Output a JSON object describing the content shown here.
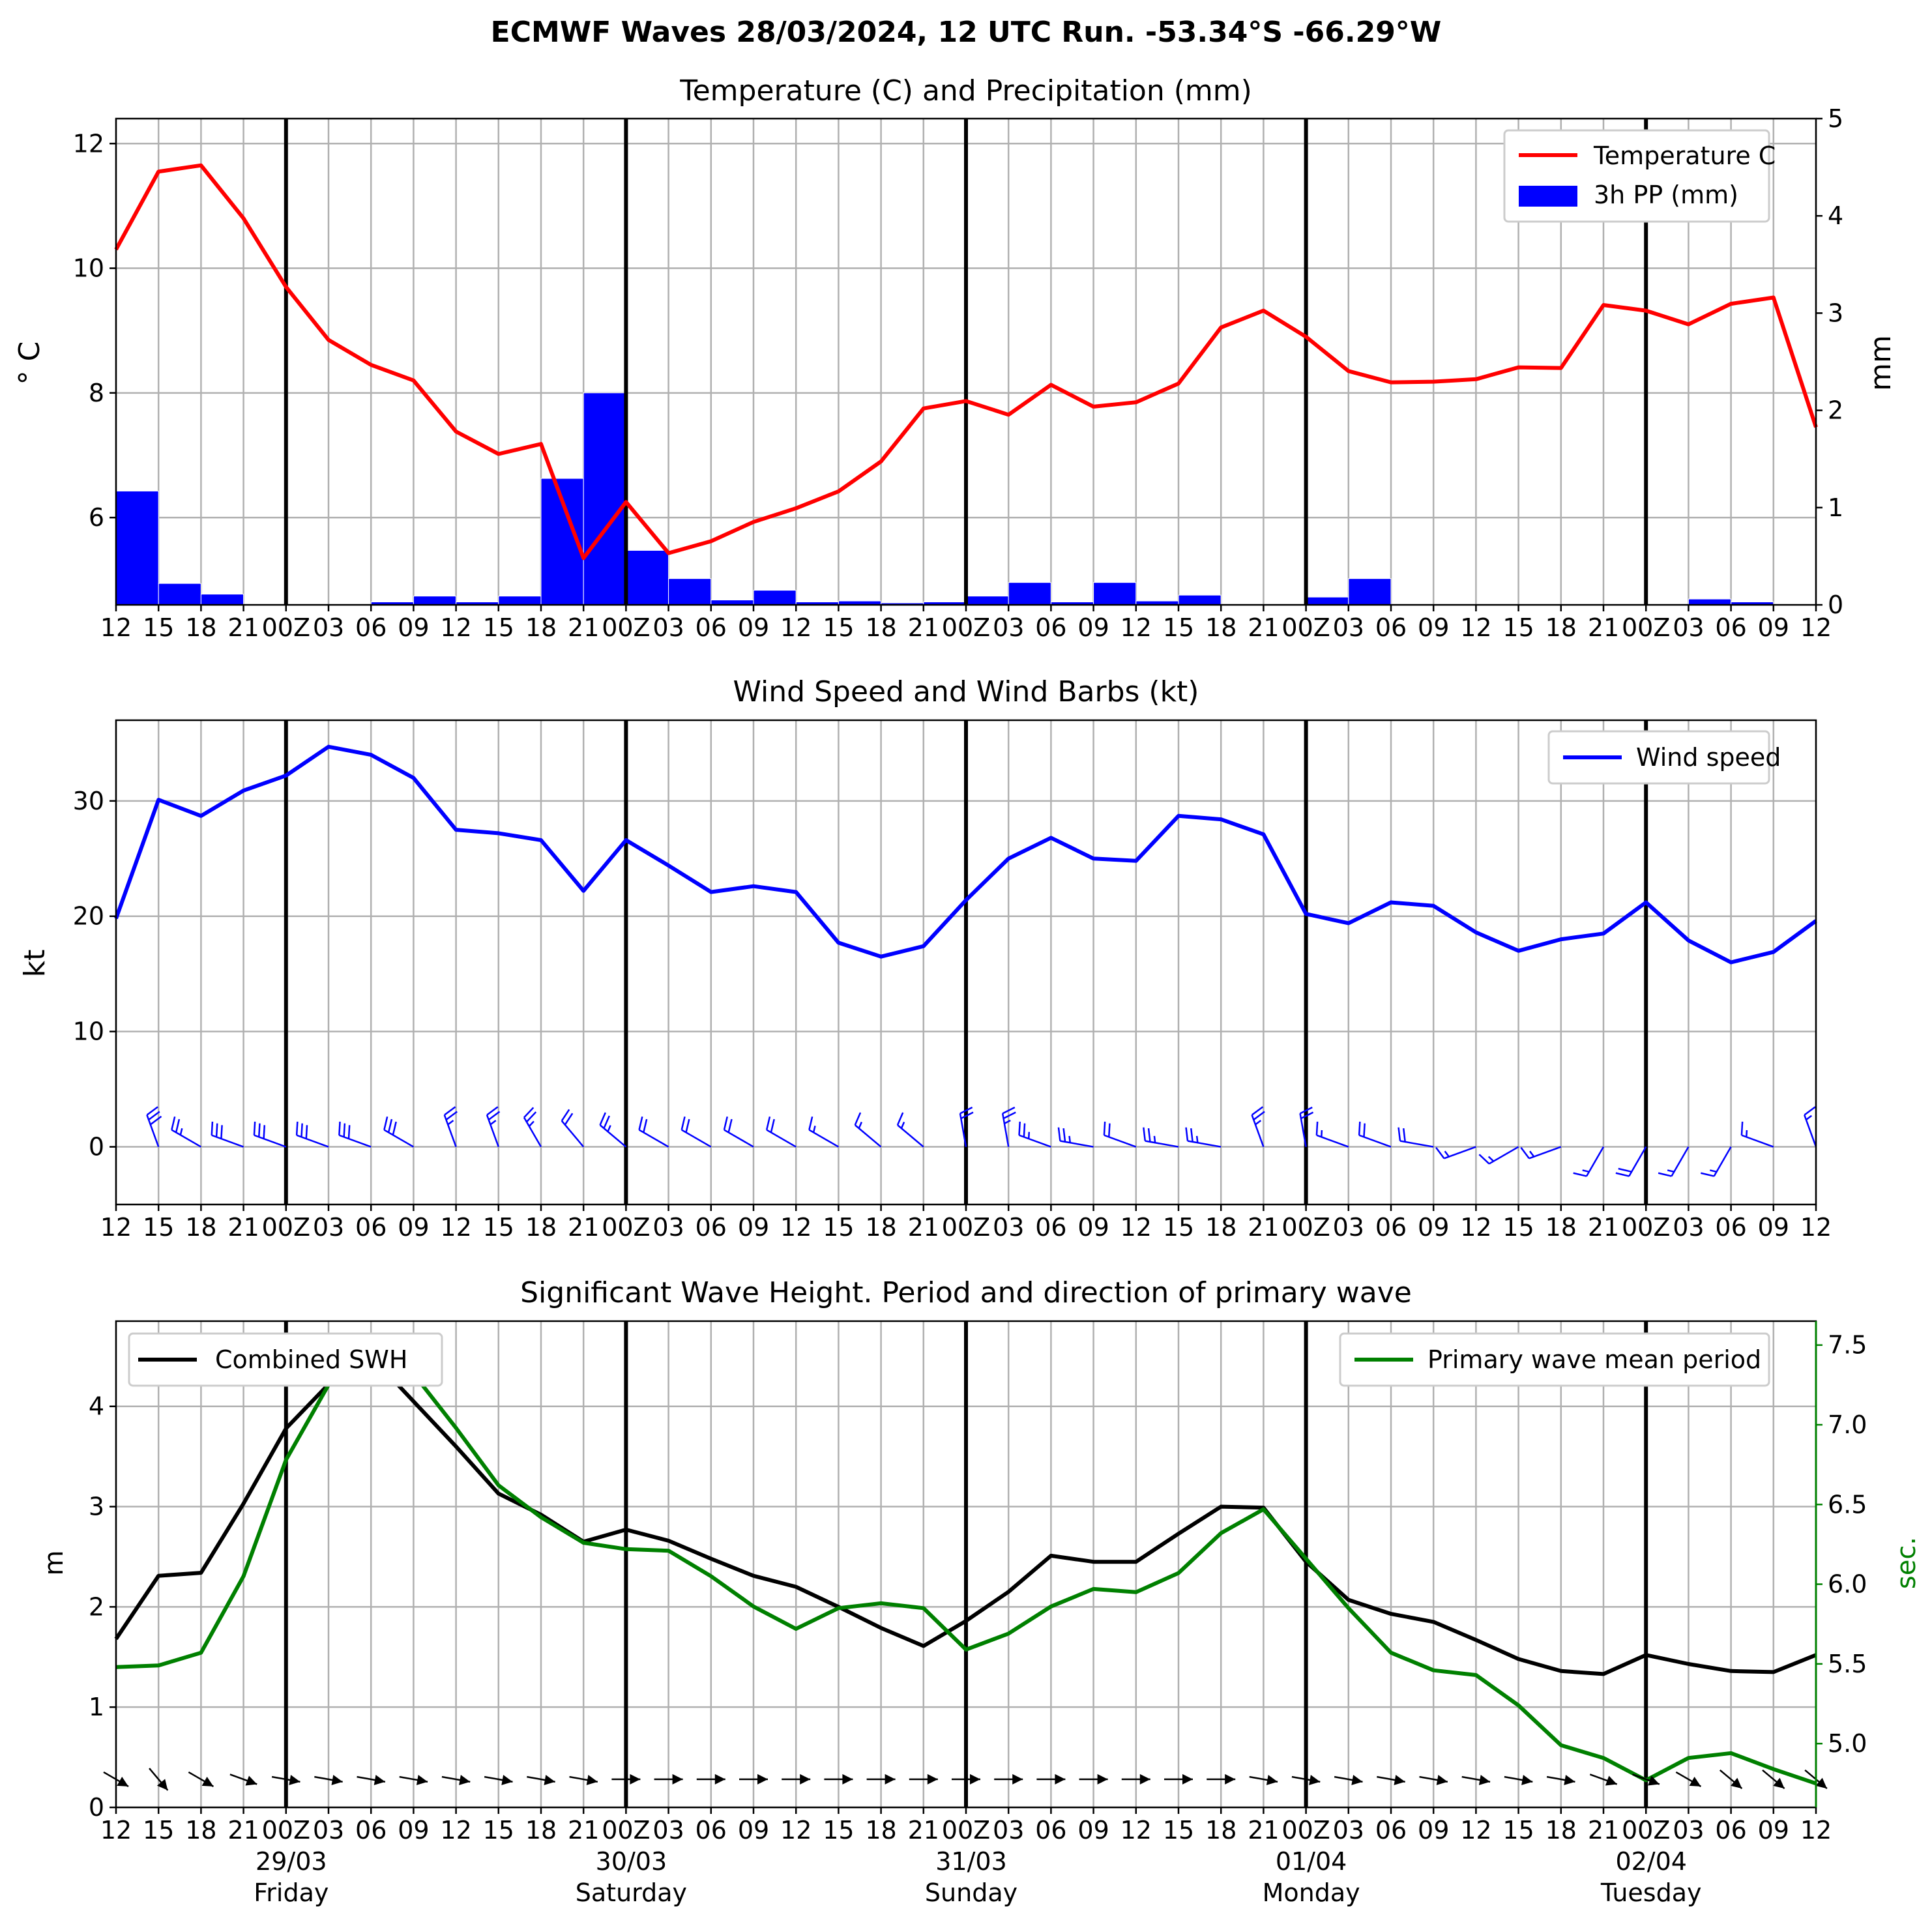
{
  "figure": {
    "suptitle": "ECMWF Waves 28/03/2024, 12 UTC Run. -53.34°S -66.29°W"
  },
  "time_axis": {
    "tick_labels": [
      "12",
      "15",
      "18",
      "21",
      "00Z",
      "03",
      "06",
      "09",
      "12",
      "15",
      "18",
      "21",
      "00Z",
      "03",
      "06",
      "09",
      "12",
      "15",
      "18",
      "21",
      "00Z",
      "03",
      "06",
      "09",
      "12",
      "15",
      "18",
      "21",
      "00Z",
      "03",
      "06",
      "09",
      "12",
      "15",
      "18",
      "21",
      "00Z",
      "03",
      "06",
      "09",
      "12"
    ],
    "day_labels": [
      {
        "date": "29/03",
        "day": "Friday",
        "tick_index": 4
      },
      {
        "date": "30/03",
        "day": "Saturday",
        "tick_index": 12
      },
      {
        "date": "31/03",
        "day": "Sunday",
        "tick_index": 20
      },
      {
        "date": "01/04",
        "day": "Monday",
        "tick_index": 28
      },
      {
        "date": "02/04",
        "day": "Tuesday",
        "tick_index": 36
      }
    ],
    "midnight_indices": [
      4,
      12,
      20,
      28,
      36
    ]
  },
  "chart_data": [
    {
      "type": "line",
      "title": "Temperature (C) and Precipitation (mm)",
      "ylabel": "° C",
      "ylabel_right": "mm",
      "ylim": [
        4.6,
        12.4
      ],
      "ylim_right": [
        0,
        5
      ],
      "yticks": [
        6,
        8,
        10,
        12
      ],
      "yticks_right": [
        0,
        1,
        2,
        3,
        4,
        5
      ],
      "grid": true,
      "legend_position": "top-right",
      "colors": {
        "temperature": "#ff0000",
        "precip": "#0000ff"
      },
      "series": [
        {
          "name": "Temperature C",
          "axis": "left",
          "type": "line",
          "values": [
            10.3,
            11.55,
            11.65,
            10.8,
            9.7,
            8.85,
            8.45,
            8.2,
            7.38,
            7.02,
            7.18,
            5.35,
            6.25,
            5.43,
            5.62,
            5.93,
            6.15,
            6.42,
            6.9,
            7.75,
            7.87,
            7.65,
            8.13,
            7.78,
            7.85,
            8.15,
            9.05,
            9.32,
            8.9,
            8.35,
            8.17,
            8.18,
            8.22,
            8.41,
            8.4,
            9.41,
            9.32,
            9.1,
            9.43,
            9.53,
            7.45
          ]
        },
        {
          "name": "3h PP (mm)",
          "axis": "right",
          "type": "bar",
          "values": [
            1.17,
            0.22,
            0.11,
            0,
            0,
            0,
            0.03,
            0.09,
            0.03,
            0.09,
            1.3,
            2.18,
            0.56,
            0.27,
            0.05,
            0.15,
            0.03,
            0.04,
            0.02,
            0.03,
            0.09,
            0.23,
            0.03,
            0.23,
            0.04,
            0.1,
            0,
            0,
            0.08,
            0.27,
            0,
            0,
            0,
            0,
            0,
            0,
            0,
            0.06,
            0.03,
            0,
            0
          ]
        }
      ]
    },
    {
      "type": "line",
      "title": "Wind Speed and Wind Barbs (kt)",
      "ylabel": "kt",
      "ylim": [
        -5,
        37
      ],
      "yticks": [
        0,
        10,
        20,
        30
      ],
      "grid": true,
      "legend_position": "top-right",
      "colors": {
        "wind": "#0000ff"
      },
      "series": [
        {
          "name": "Wind speed",
          "values": [
            19.8,
            30.1,
            28.7,
            30.9,
            32.2,
            34.7,
            34.0,
            32.0,
            27.5,
            27.2,
            26.6,
            22.2,
            26.6,
            24.4,
            22.1,
            22.6,
            22.1,
            17.7,
            16.5,
            17.4,
            21.4,
            25.0,
            26.8,
            25.0,
            24.8,
            28.7,
            28.4,
            27.1,
            20.2,
            19.4,
            21.2,
            20.9,
            18.6,
            17.0,
            18.0,
            18.5,
            21.2,
            17.9,
            16.0,
            16.9,
            19.6
          ]
        }
      ],
      "barb_directions_deg": [
        200,
        340,
        300,
        290,
        290,
        290,
        290,
        300,
        340,
        340,
        330,
        320,
        310,
        300,
        300,
        300,
        300,
        300,
        310,
        310,
        350,
        350,
        290,
        280,
        290,
        280,
        280,
        340,
        350,
        290,
        290,
        280,
        250,
        240,
        250,
        210,
        210,
        210,
        210,
        290,
        340
      ]
    },
    {
      "type": "line",
      "title": "Significant Wave Height. Period and direction of primary wave",
      "ylabel": "m",
      "ylabel_right": "sec.",
      "ylim": [
        0,
        4.85
      ],
      "ylim_right": [
        4.6,
        7.65
      ],
      "yticks": [
        0,
        1,
        2,
        3,
        4
      ],
      "yticks_right": [
        5.0,
        5.5,
        6.0,
        6.5,
        7.0,
        7.5
      ],
      "grid": true,
      "legend_positions": {
        "Combined SWH": "top-left",
        "Primary wave mean period": "top-right"
      },
      "colors": {
        "swh": "#000000",
        "period": "#008000"
      },
      "series": [
        {
          "name": "Combined SWH",
          "axis": "left",
          "values": [
            1.68,
            2.31,
            2.34,
            3.03,
            3.78,
            4.22,
            4.5,
            4.05,
            3.6,
            3.13,
            2.92,
            2.65,
            2.77,
            2.66,
            2.48,
            2.31,
            2.2,
            2.0,
            1.79,
            1.61,
            1.86,
            2.15,
            2.51,
            2.45,
            2.45,
            2.73,
            3.0,
            2.99,
            2.45,
            2.07,
            1.93,
            1.85,
            1.67,
            1.48,
            1.36,
            1.33,
            1.52,
            1.43,
            1.36,
            1.35,
            1.52
          ]
        },
        {
          "name": "Primary wave mean period",
          "axis": "right",
          "values": [
            5.48,
            5.49,
            5.57,
            6.05,
            6.78,
            7.25,
            7.56,
            7.32,
            6.98,
            6.62,
            6.42,
            6.26,
            6.22,
            6.21,
            6.05,
            5.86,
            5.72,
            5.85,
            5.88,
            5.85,
            5.59,
            5.69,
            5.86,
            5.97,
            5.95,
            6.07,
            6.32,
            6.47,
            6.16,
            5.85,
            5.57,
            5.46,
            5.43,
            5.24,
            4.99,
            4.91,
            4.77,
            4.91,
            4.94,
            4.84,
            4.75
          ]
        }
      ],
      "wave_directions_deg": [
        300,
        320,
        300,
        290,
        280,
        280,
        280,
        280,
        280,
        280,
        280,
        280,
        270,
        270,
        270,
        270,
        270,
        270,
        270,
        270,
        270,
        270,
        270,
        270,
        270,
        270,
        270,
        280,
        280,
        280,
        280,
        280,
        280,
        280,
        280,
        290,
        290,
        300,
        310,
        310,
        310
      ]
    }
  ]
}
